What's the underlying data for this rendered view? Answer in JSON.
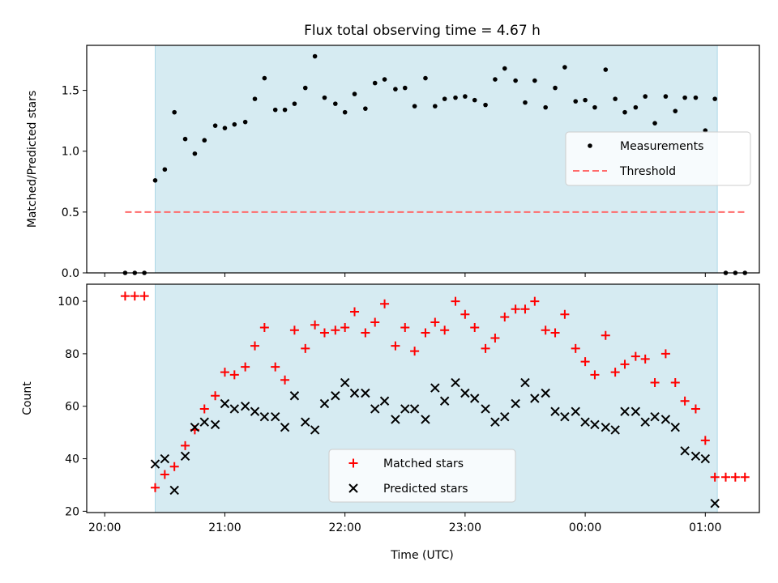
{
  "chart_data": {
    "title": "Flux total observing time = 4.67 h",
    "xlabel": "Time (UTC)",
    "x_unit": "hours since 20:00 UTC",
    "xlim": [
      -0.15,
      5.45
    ],
    "x_ticks": [
      {
        "x": 0,
        "label": "20:00"
      },
      {
        "x": 1,
        "label": "21:00"
      },
      {
        "x": 2,
        "label": "22:00"
      },
      {
        "x": 3,
        "label": "23:00"
      },
      {
        "x": 4,
        "label": "00:00"
      },
      {
        "x": 5,
        "label": "01:00"
      }
    ],
    "observing_window": {
      "start": 0.42,
      "end": 5.1,
      "color": "#add8e6"
    },
    "panels": [
      {
        "type": "scatter",
        "ylabel": "Matched/Predicted stars",
        "ylim": [
          0,
          1.87
        ],
        "y_ticks": [
          0,
          0.5,
          1.0,
          1.5
        ],
        "y_tick_labels": [
          "0.0",
          "0.5",
          "1.0",
          "1.5"
        ],
        "legend": {
          "placement": "center-right",
          "entries": [
            "Measurements",
            "Threshold"
          ]
        },
        "series": [
          {
            "name": "Measurements",
            "marker": "dot",
            "color": "#000000",
            "x": [
              0.17,
              0.25,
              0.33,
              0.42,
              0.5,
              0.58,
              0.67,
              0.75,
              0.83,
              0.92,
              1.0,
              1.08,
              1.17,
              1.25,
              1.33,
              1.42,
              1.5,
              1.58,
              1.67,
              1.75,
              1.83,
              1.92,
              2.0,
              2.08,
              2.17,
              2.25,
              2.33,
              2.42,
              2.5,
              2.58,
              2.67,
              2.75,
              2.83,
              2.92,
              3.0,
              3.08,
              3.17,
              3.25,
              3.33,
              3.42,
              3.5,
              3.58,
              3.67,
              3.75,
              3.83,
              3.92,
              4.0,
              4.08,
              4.17,
              4.25,
              4.33,
              4.42,
              4.5,
              4.58,
              4.67,
              4.75,
              4.83,
              4.92,
              5.0,
              5.08,
              5.17,
              5.25,
              5.33
            ],
            "y": [
              0.0,
              0.0,
              0.0,
              0.76,
              0.85,
              1.32,
              1.1,
              0.98,
              1.09,
              1.21,
              1.19,
              1.22,
              1.24,
              1.43,
              1.6,
              1.34,
              1.34,
              1.39,
              1.52,
              1.78,
              1.44,
              1.39,
              1.32,
              1.47,
              1.35,
              1.56,
              1.59,
              1.51,
              1.52,
              1.37,
              1.6,
              1.37,
              1.43,
              1.44,
              1.45,
              1.42,
              1.38,
              1.59,
              1.68,
              1.58,
              1.4,
              1.58,
              1.36,
              1.52,
              1.69,
              1.41,
              1.42,
              1.36,
              1.67,
              1.43,
              1.32,
              1.36,
              1.45,
              1.23,
              1.45,
              1.33,
              1.44,
              1.44,
              1.17,
              1.43,
              0.0,
              0.0,
              0.0
            ]
          },
          {
            "name": "Threshold",
            "marker": "dashed-line",
            "color": "#ff6b6b",
            "x": [
              0.17,
              5.33
            ],
            "y": [
              0.5,
              0.5
            ]
          }
        ]
      },
      {
        "type": "scatter",
        "ylabel": "Count",
        "ylim": [
          19.5,
          106.5
        ],
        "y_ticks": [
          20,
          40,
          60,
          80,
          100
        ],
        "y_tick_labels": [
          "20",
          "40",
          "60",
          "80",
          "100"
        ],
        "legend": {
          "placement": "lower-center",
          "entries": [
            "Matched stars",
            "Predicted stars"
          ]
        },
        "series": [
          {
            "name": "Matched stars",
            "marker": "plus",
            "color": "#ff0000",
            "x": [
              0.17,
              0.25,
              0.33,
              0.42,
              0.5,
              0.58,
              0.67,
              0.75,
              0.83,
              0.92,
              1.0,
              1.08,
              1.17,
              1.25,
              1.33,
              1.42,
              1.5,
              1.58,
              1.67,
              1.75,
              1.83,
              1.92,
              2.0,
              2.08,
              2.17,
              2.25,
              2.33,
              2.42,
              2.5,
              2.58,
              2.67,
              2.75,
              2.83,
              2.92,
              3.0,
              3.08,
              3.17,
              3.25,
              3.33,
              3.42,
              3.5,
              3.58,
              3.67,
              3.75,
              3.83,
              3.92,
              4.0,
              4.08,
              4.17,
              4.25,
              4.33,
              4.42,
              4.5,
              4.58,
              4.67,
              4.75,
              4.83,
              4.92,
              5.0,
              5.08,
              5.17,
              5.25,
              5.33
            ],
            "y": [
              102,
              102,
              102,
              29,
              34,
              37,
              45,
              51,
              59,
              64,
              73,
              72,
              75,
              83,
              90,
              75,
              70,
              89,
              82,
              91,
              88,
              89,
              90,
              96,
              88,
              92,
              99,
              83,
              90,
              81,
              88,
              92,
              89,
              100,
              95,
              90,
              82,
              86,
              94,
              97,
              97,
              100,
              89,
              88,
              95,
              82,
              77,
              72,
              87,
              73,
              76,
              79,
              78,
              69,
              80,
              69,
              62,
              59,
              47,
              33,
              33,
              33,
              33
            ]
          },
          {
            "name": "Predicted stars",
            "marker": "x",
            "color": "#000000",
            "x": [
              0.42,
              0.5,
              0.58,
              0.67,
              0.75,
              0.83,
              0.92,
              1.0,
              1.08,
              1.17,
              1.25,
              1.33,
              1.42,
              1.5,
              1.58,
              1.67,
              1.75,
              1.83,
              1.92,
              2.0,
              2.08,
              2.17,
              2.25,
              2.33,
              2.42,
              2.5,
              2.58,
              2.67,
              2.75,
              2.83,
              2.92,
              3.0,
              3.08,
              3.17,
              3.25,
              3.33,
              3.42,
              3.5,
              3.58,
              3.67,
              3.75,
              3.83,
              3.92,
              4.0,
              4.08,
              4.17,
              4.25,
              4.33,
              4.42,
              4.5,
              4.58,
              4.67,
              4.75,
              4.83,
              4.92,
              5.0,
              5.08
            ],
            "y": [
              38,
              40,
              28,
              41,
              52,
              54,
              53,
              61,
              59,
              60,
              58,
              56,
              56,
              52,
              64,
              54,
              51,
              61,
              64,
              69,
              65,
              65,
              59,
              62,
              55,
              59,
              59,
              55,
              67,
              62,
              69,
              65,
              63,
              59,
              54,
              56,
              61,
              69,
              63,
              65,
              58,
              56,
              58,
              54,
              53,
              52,
              51,
              58,
              58,
              54,
              56,
              55,
              52,
              43,
              41,
              40,
              23
            ]
          }
        ]
      }
    ]
  }
}
